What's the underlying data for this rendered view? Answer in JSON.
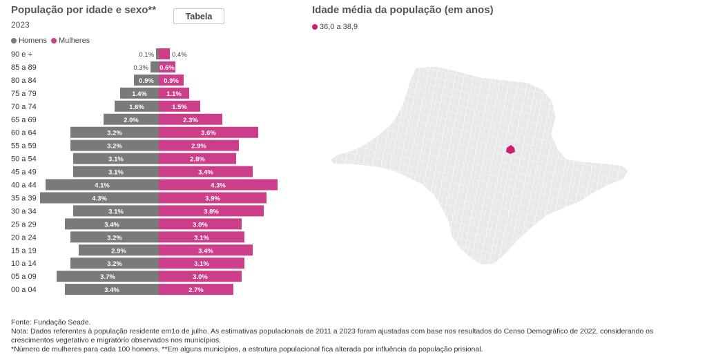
{
  "left_panel": {
    "title": "População por idade e sexo**",
    "year": "2023",
    "table_button": "Tabela",
    "legend": [
      {
        "label": "Homens",
        "color": "#7a7a7a"
      },
      {
        "label": "Mulheres",
        "color": "#cc3d8a"
      }
    ]
  },
  "right_panel": {
    "title": "Idade média da população (em anos)",
    "legend_label": "36,0 a 38,9",
    "legend_color": "#cc1f6e",
    "base_color": "#e8e8e8"
  },
  "chart_data": {
    "type": "bar",
    "orientation": "horizontal-pyramid",
    "categories": [
      "90 e +",
      "85 a 89",
      "80 a 84",
      "75 a 79",
      "70 a 74",
      "65 a 69",
      "60 a 64",
      "55 a 59",
      "50 a 54",
      "45 a 49",
      "40 a 44",
      "35 a 39",
      "30 a 34",
      "25 a 29",
      "20 a 24",
      "15 a 19",
      "10 a 14",
      "05 a 09",
      "00 a 04"
    ],
    "series": [
      {
        "name": "Homens",
        "color": "#7a7a7a",
        "values": [
          0.1,
          0.3,
          0.9,
          1.4,
          1.6,
          2.0,
          3.2,
          3.2,
          3.1,
          3.1,
          4.1,
          4.3,
          3.1,
          3.4,
          3.2,
          2.9,
          3.2,
          3.7,
          3.4
        ]
      },
      {
        "name": "Mulheres",
        "color": "#cc3d8a",
        "values": [
          0.4,
          0.6,
          0.9,
          1.1,
          1.5,
          2.3,
          3.6,
          2.9,
          2.8,
          3.4,
          4.3,
          3.9,
          3.8,
          3.0,
          3.1,
          3.4,
          3.1,
          3.0,
          2.7
        ]
      }
    ],
    "labels": {
      "Homens": [
        "0.1%",
        "0.3%",
        "0.9%",
        "1.4%",
        "1.6%",
        "2.0%",
        "3.2%",
        "3.2%",
        "3.1%",
        "3.1%",
        "4.1%",
        "4.3%",
        "3.1%",
        "3.4%",
        "3.2%",
        "2.9%",
        "3.2%",
        "3.7%",
        "3.4%"
      ],
      "Mulheres": [
        "0.4%",
        "0.6%",
        "0.9%",
        "1.1%",
        "1.5%",
        "2.3%",
        "3.6%",
        "2.9%",
        "2.8%",
        "3.4%",
        "4.3%",
        "3.9%",
        "3.8%",
        "3.0%",
        "3.1%",
        "3.4%",
        "3.1%",
        "3.0%",
        "2.7%"
      ]
    }
  },
  "notes": {
    "source": "Fonte: Fundação Seade.",
    "note": "Nota: Dados referentes à população residente em1o de julho. As estimativas populacionais de 2011 a 2023 foram ajustadas com base nos resultados do Censo Demográfico de 2022, considerando os crescimentos vegetativo e migratório observados nos municípios.",
    "footnote": "*Número de mulheres para cada 100 homens. **Em alguns municípios, a estrutura populacional fica alterada por influência da população prisional."
  }
}
